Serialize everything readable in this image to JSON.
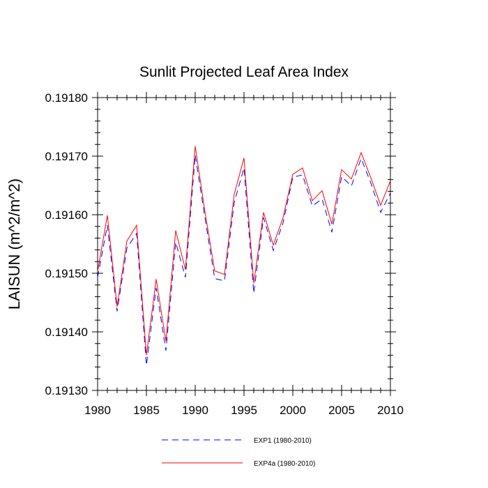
{
  "chart_data": {
    "type": "line",
    "title": "Sunlit Projected Leaf Area Index",
    "xlabel": "",
    "ylabel": "LAISUN  (m^2/m^2)",
    "xlim": [
      1980,
      2010
    ],
    "ylim": [
      0.1913,
      0.1918
    ],
    "xticks": [
      1980,
      1985,
      1990,
      1995,
      2000,
      2005,
      2010
    ],
    "xtick_labels": [
      "1980",
      "1985",
      "1990",
      "1995",
      "2000",
      "2005",
      "2010"
    ],
    "yticks": [
      0.1913,
      0.1914,
      0.1915,
      0.1916,
      0.1917,
      0.1918
    ],
    "ytick_labels": [
      "0.19130",
      "0.19140",
      "0.19150",
      "0.19160",
      "0.19170",
      "0.19180"
    ],
    "x": [
      1980,
      1981,
      1982,
      1983,
      1984,
      1985,
      1986,
      1987,
      1988,
      1989,
      1990,
      1991,
      1992,
      1993,
      1994,
      1995,
      1996,
      1997,
      1998,
      1999,
      2000,
      2001,
      2002,
      2003,
      2004,
      2005,
      2006,
      2007,
      2008,
      2009,
      2010
    ],
    "series": [
      {
        "name": "EXP1 (1980-2010)",
        "color": "#0000ff",
        "dash": "dashed",
        "values": [
          0.191493,
          0.191582,
          0.191435,
          0.191543,
          0.191568,
          0.191343,
          0.191475,
          0.191368,
          0.191553,
          0.191493,
          0.191702,
          0.191595,
          0.191491,
          0.191487,
          0.191621,
          0.19168,
          0.191466,
          0.191595,
          0.191539,
          0.191586,
          0.191664,
          0.191668,
          0.191615,
          0.191627,
          0.19157,
          0.191665,
          0.191649,
          0.191696,
          0.191654,
          0.191604,
          0.191637
        ]
      },
      {
        "name": "EXP4a (1980-2010)",
        "color": "#ff0000",
        "dash": "solid",
        "values": [
          0.191503,
          0.191599,
          0.191443,
          0.191555,
          0.191582,
          0.19136,
          0.19149,
          0.191384,
          0.191573,
          0.191506,
          0.191717,
          0.191605,
          0.191504,
          0.191498,
          0.191635,
          0.191697,
          0.191483,
          0.191604,
          0.191548,
          0.191595,
          0.191669,
          0.19168,
          0.191624,
          0.191641,
          0.191584,
          0.191677,
          0.191661,
          0.191706,
          0.191663,
          0.191616,
          0.191658
        ]
      }
    ],
    "legend": [
      "EXP1 (1980-2010)",
      "EXP4a (1980-2010)"
    ],
    "legend_position": "bottom",
    "grid": false
  }
}
